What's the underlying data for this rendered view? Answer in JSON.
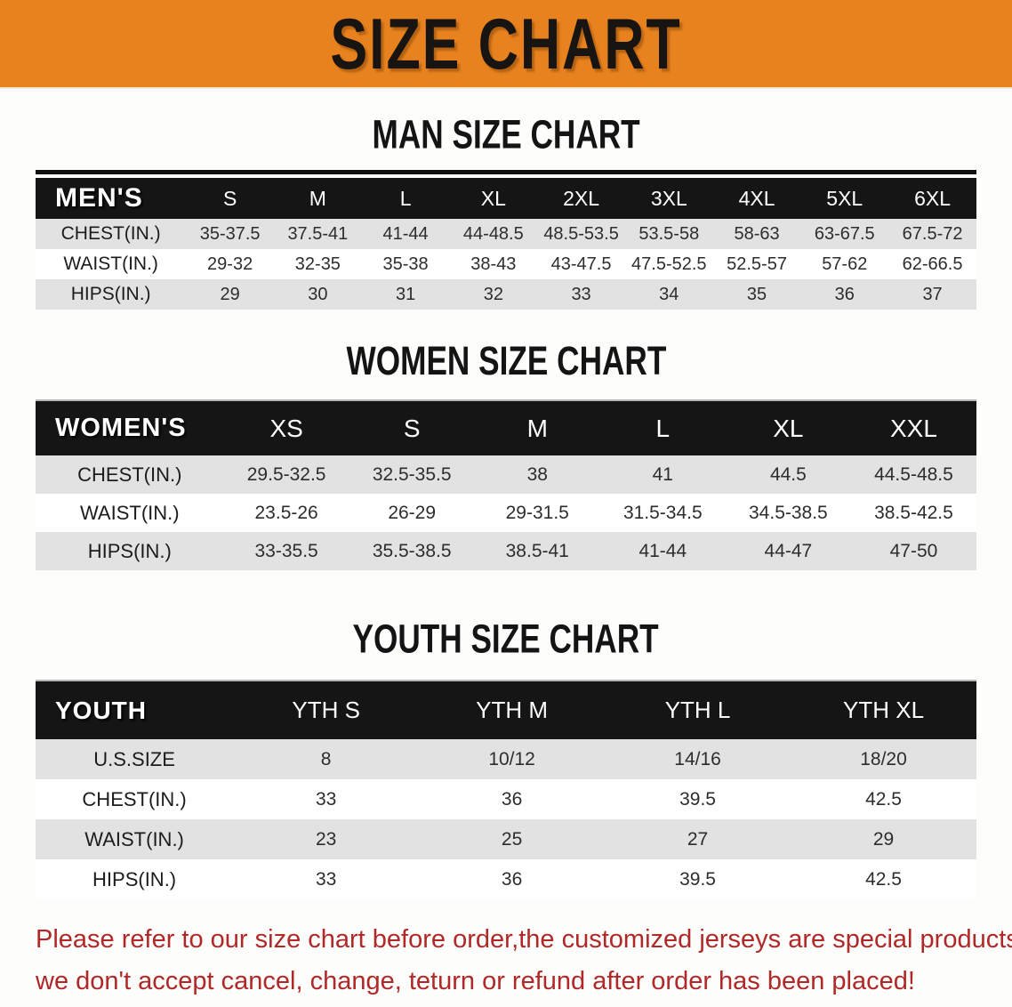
{
  "banner": {
    "title": "SIZE CHART"
  },
  "tables": [
    {
      "heading": "MAN SIZE CHART",
      "corner_label": "MEN'S",
      "columns": [
        "S",
        "M",
        "L",
        "XL",
        "2XL",
        "3XL",
        "4XL",
        "5XL",
        "6XL"
      ],
      "rows": [
        {
          "label": "CHEST(IN.)",
          "values": [
            "35-37.5",
            "37.5-41",
            "41-44",
            "44-48.5",
            "48.5-53.5",
            "53.5-58",
            "58-63",
            "63-67.5",
            "67.5-72"
          ]
        },
        {
          "label": "WAIST(IN.)",
          "values": [
            "29-32",
            "32-35",
            "35-38",
            "38-43",
            "43-47.5",
            "47.5-52.5",
            "52.5-57",
            "57-62",
            "62-66.5"
          ]
        },
        {
          "label": "HIPS(IN.)",
          "values": [
            "29",
            "30",
            "31",
            "32",
            "33",
            "34",
            "35",
            "36",
            "37"
          ]
        }
      ]
    },
    {
      "heading": "WOMEN SIZE CHART",
      "corner_label": "WOMEN'S",
      "columns": [
        "XS",
        "S",
        "M",
        "L",
        "XL",
        "XXL"
      ],
      "rows": [
        {
          "label": "CHEST(IN.)",
          "values": [
            "29.5-32.5",
            "32.5-35.5",
            "38",
            "41",
            "44.5",
            "44.5-48.5"
          ]
        },
        {
          "label": "WAIST(IN.)",
          "values": [
            "23.5-26",
            "26-29",
            "29-31.5",
            "31.5-34.5",
            "34.5-38.5",
            "38.5-42.5"
          ]
        },
        {
          "label": "HIPS(IN.)",
          "values": [
            "33-35.5",
            "35.5-38.5",
            "38.5-41",
            "41-44",
            "44-47",
            "47-50"
          ]
        }
      ]
    },
    {
      "heading": "YOUTH SIZE CHART",
      "corner_label": "YOUTH",
      "columns": [
        "YTH S",
        "YTH M",
        "YTH L",
        "YTH XL"
      ],
      "rows": [
        {
          "label": "U.S.SIZE",
          "values": [
            "8",
            "10/12",
            "14/16",
            "18/20"
          ]
        },
        {
          "label": "CHEST(IN.)",
          "values": [
            "33",
            "36",
            "39.5",
            "42.5"
          ]
        },
        {
          "label": "WAIST(IN.)",
          "values": [
            "23",
            "25",
            "27",
            "29"
          ]
        },
        {
          "label": "HIPS(IN.)",
          "values": [
            "33",
            "36",
            "39.5",
            "42.5"
          ]
        }
      ]
    }
  ],
  "disclaimer": {
    "lines": [
      "Please refer to our size chart before order,the customized jerseys are special products,",
      "we don't accept cancel, change, teturn or refund after order has been placed!"
    ]
  },
  "colors": {
    "banner_orange": "#e8821e",
    "table_header_black": "#151515",
    "row_shade_gray": "#e2e2e2",
    "disclaimer_red": "#b02828"
  }
}
